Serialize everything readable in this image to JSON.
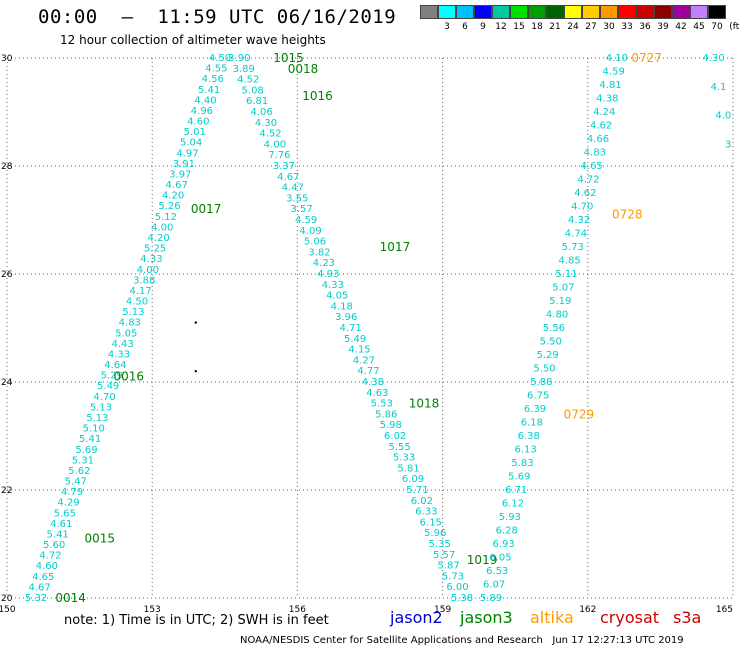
{
  "header": {
    "title": "00:00  —  11:59 UTC 06/16/2019",
    "subtitle": "12 hour collection of altimeter wave heights"
  },
  "legend": {
    "unit": "(ft)",
    "bins": [
      {
        "label": "",
        "color": "#808080"
      },
      {
        "label": "3",
        "color": "#00ffff"
      },
      {
        "label": "6",
        "color": "#00bfff"
      },
      {
        "label": "9",
        "color": "#0000ff"
      },
      {
        "label": "12",
        "color": "#00c8a0"
      },
      {
        "label": "15",
        "color": "#00e000"
      },
      {
        "label": "18",
        "color": "#00a000"
      },
      {
        "label": "21",
        "color": "#006400"
      },
      {
        "label": "24",
        "color": "#ffff00"
      },
      {
        "label": "27",
        "color": "#ffcc00"
      },
      {
        "label": "30",
        "color": "#ff9900"
      },
      {
        "label": "33",
        "color": "#ff0000"
      },
      {
        "label": "36",
        "color": "#c80000"
      },
      {
        "label": "39",
        "color": "#8b0000"
      },
      {
        "label": "42",
        "color": "#a000a0"
      },
      {
        "label": "45",
        "color": "#c080ff"
      },
      {
        "label": "70",
        "color": "#000000"
      }
    ]
  },
  "map": {
    "lon_range": [
      150,
      165
    ],
    "lat_range": [
      20,
      30
    ],
    "lon_ticks": [
      "150",
      "153",
      "156",
      "159",
      "162",
      "165"
    ],
    "lat_ticks": [
      "20",
      "22",
      "24",
      "26",
      "28",
      "30"
    ],
    "colors": {
      "jason2": "#0000cc",
      "jason3": "#008000",
      "altika": "#ff9900",
      "cryosat": "#cc0000",
      "s3a": "#cc0000",
      "swh": "#00cccc"
    },
    "tracks": [
      {
        "sat": "jason3",
        "pass_labels": [
          {
            "text": "0014",
            "lon": 151.0,
            "lat": 20.0
          },
          {
            "text": "0015",
            "lon": 151.6,
            "lat": 21.1
          },
          {
            "text": "0016",
            "lon": 152.2,
            "lat": 24.1
          },
          {
            "text": "0017",
            "lon": 153.8,
            "lat": 27.2
          }
        ],
        "values": [
          "5.32",
          "4.67",
          "4.65",
          "4.60",
          "4.72",
          "5.60",
          "5.41",
          "4.61",
          "5.65",
          "4.29",
          "4.79",
          "5.47",
          "5.62",
          "5.31",
          "5.69",
          "5.41",
          "5.10",
          "5.13",
          "5.13",
          "4.70",
          "5.49",
          "5.29",
          "4.64",
          "4.33",
          "4.43",
          "5.05",
          "4.83",
          "5.13",
          "4.50",
          "4.17",
          "3.88",
          "4.00",
          "4.33",
          "5.25",
          "4.20",
          "4.00",
          "5.12",
          "5.26",
          "4.20",
          "4.67",
          "3.97",
          "3.91",
          "4.97",
          "5.04",
          "5.01",
          "4.60",
          "4.96",
          "4.40",
          "5.41",
          "4.56",
          "4.55",
          "4.50"
        ]
      },
      {
        "sat": "jason3",
        "pass_labels": [
          {
            "text": "1015",
            "lon": 155.5,
            "lat": 30.0
          },
          {
            "text": "0018",
            "lon": 155.8,
            "lat": 29.8
          },
          {
            "text": "1016",
            "lon": 156.1,
            "lat": 29.3
          },
          {
            "text": "1017",
            "lon": 157.7,
            "lat": 26.5
          },
          {
            "text": "1018",
            "lon": 158.3,
            "lat": 23.6
          },
          {
            "text": "1019",
            "lon": 159.5,
            "lat": 20.7
          }
        ],
        "values": [
          "3.90",
          "3.89",
          "4.52",
          "5.08",
          "6.81",
          "4.06",
          "4.30",
          "4.52",
          "4.00",
          "7.76",
          "3.37",
          "4.67",
          "4.47",
          "3.55",
          "3.57",
          "4.59",
          "4.09",
          "5.06",
          "3.82",
          "4.23",
          "4.93",
          "4.33",
          "4.05",
          "4.18",
          "3.96",
          "4.71",
          "5.49",
          "4.15",
          "4.27",
          "4.77",
          "4.38",
          "4.63",
          "5.53",
          "5.86",
          "5.98",
          "6.02",
          "5.55",
          "5.33",
          "5.81",
          "6.09",
          "5.71",
          "6.02",
          "6.33",
          "6.15",
          "5.96",
          "5.35",
          "5.57",
          "5.87",
          "5.73",
          "6.00",
          "5.38"
        ]
      },
      {
        "sat": "altika",
        "pass_labels": [
          {
            "text": "0727",
            "lon": 162.9,
            "lat": 30.0
          },
          {
            "text": "0728",
            "lon": 162.5,
            "lat": 27.1
          },
          {
            "text": "0729",
            "lon": 161.5,
            "lat": 23.4
          }
        ],
        "values": [
          "5.89",
          "6.07",
          "6.53",
          "6.05",
          "6.93",
          "6.28",
          "5.93",
          "6.12",
          "6.71",
          "5.69",
          "5.83",
          "6.13",
          "6.38",
          "6.18",
          "6.39",
          "6.75",
          "5.88",
          "5.50",
          "5.29",
          "5.50",
          "5.56",
          "4.80",
          "5.19",
          "5.07",
          "5.11",
          "4.85",
          "5.73",
          "4.74",
          "4.32",
          "4.70",
          "4.62",
          "4.72",
          "4.65",
          "4.83",
          "4.66",
          "4.62",
          "4.24",
          "4.38",
          "4.81",
          "4.59",
          "4.10"
        ]
      },
      {
        "sat": "jason2",
        "pass_labels": [],
        "values": [
          "4.30",
          "4.1",
          "4.0",
          "3"
        ]
      }
    ],
    "markers": [
      {
        "lon": 153.9,
        "lat": 25.1
      },
      {
        "lon": 153.9,
        "lat": 24.2
      }
    ]
  },
  "footer": {
    "note": "note:  1) Time is in UTC;  2) SWH is in feet",
    "satellites": [
      {
        "name": "jason2",
        "color": "#0000cc"
      },
      {
        "name": "jason3",
        "color": "#008000"
      },
      {
        "name": "altika",
        "color": "#ff9900"
      },
      {
        "name": "cryosat",
        "color": "#cc0000"
      },
      {
        "name": "s3a",
        "color": "#cc0000"
      }
    ],
    "credit": "NOAA/NESDIS Center for Satellite Applications and Research   Jun 17 12:27:13 UTC 2019"
  }
}
